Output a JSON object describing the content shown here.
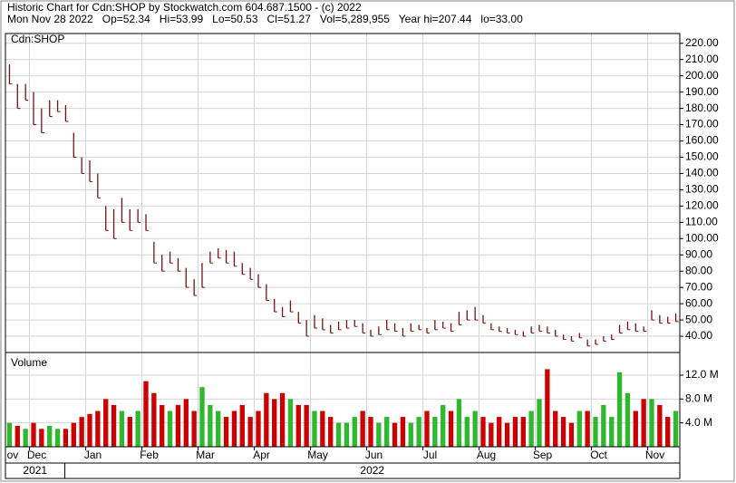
{
  "chart_data": [
    {
      "type": "range-bar",
      "title": "Historic Chart for Cdn:SHOP by Stockwatch.com 604.687.1500 - (c) 2022",
      "subtitle": "Mon Nov 28 2022   Op=52.34   Hi=53.99   Lo=50.53   Cl=51.27   Vol=5,289,955   Year hi=207.44   lo=33.00",
      "label": "Cdn:SHOP",
      "color": "#7a1010",
      "grid": true,
      "xlim": [
        0,
        84
      ],
      "xticks": [
        {
          "value": 0,
          "label": "ov"
        },
        {
          "value": 3,
          "label": "Dec"
        },
        {
          "value": 10,
          "label": "Jan"
        },
        {
          "value": 17,
          "label": "Feb"
        },
        {
          "value": 24,
          "label": "Mar"
        },
        {
          "value": 31,
          "label": "Apr"
        },
        {
          "value": 38,
          "label": "May"
        },
        {
          "value": 45,
          "label": "Jun"
        },
        {
          "value": 52,
          "label": "Jul"
        },
        {
          "value": 59,
          "label": "Aug"
        },
        {
          "value": 66,
          "label": "Sep"
        },
        {
          "value": 73,
          "label": "Oct"
        },
        {
          "value": 80,
          "label": "Nov"
        }
      ],
      "year_ticks": [
        {
          "value": 0,
          "label": "2021"
        },
        {
          "value": 7.4,
          "label": "2022"
        }
      ],
      "ylim": [
        30,
        226
      ],
      "yticks": [
        {
          "value": 40,
          "label": "40.00"
        },
        {
          "value": 50,
          "label": "50.00"
        },
        {
          "value": 60,
          "label": "60.00"
        },
        {
          "value": 70,
          "label": "70.00"
        },
        {
          "value": 80,
          "label": "80.00"
        },
        {
          "value": 90,
          "label": "90.00"
        },
        {
          "value": 100,
          "label": "100.00"
        },
        {
          "value": 110,
          "label": "110.00"
        },
        {
          "value": 120,
          "label": "120.00"
        },
        {
          "value": 130,
          "label": "130.00"
        },
        {
          "value": 140,
          "label": "140.00"
        },
        {
          "value": 150,
          "label": "150.00"
        },
        {
          "value": 160,
          "label": "160.00"
        },
        {
          "value": 170,
          "label": "170.00"
        },
        {
          "value": 180,
          "label": "180.00"
        },
        {
          "value": 190,
          "label": "190.00"
        },
        {
          "value": 200,
          "label": "200.00"
        },
        {
          "value": 210,
          "label": "210.00"
        },
        {
          "value": 220,
          "label": "220.00"
        }
      ],
      "high": [
        207,
        195,
        195,
        190,
        180,
        185,
        185,
        182,
        165,
        150,
        148,
        140,
        120,
        118,
        125,
        118,
        118,
        115,
        98,
        90,
        92,
        88,
        82,
        75,
        85,
        92,
        94,
        93,
        92,
        85,
        82,
        78,
        72,
        63,
        58,
        62,
        55,
        50,
        53,
        51,
        47,
        49,
        50,
        50,
        48,
        44,
        46,
        50,
        48,
        45,
        48,
        47,
        45,
        50,
        49,
        48,
        55,
        56,
        58,
        53,
        48,
        46,
        45,
        44,
        43,
        46,
        47,
        46,
        44,
        41,
        40,
        42,
        38,
        38,
        40,
        41,
        47,
        49,
        48,
        46,
        56,
        53,
        52,
        54
      ],
      "low": [
        195,
        180,
        185,
        170,
        165,
        175,
        178,
        172,
        150,
        140,
        135,
        125,
        105,
        100,
        110,
        105,
        110,
        105,
        85,
        80,
        85,
        80,
        70,
        65,
        70,
        85,
        88,
        85,
        83,
        78,
        75,
        70,
        62,
        55,
        52,
        55,
        48,
        40,
        45,
        44,
        42,
        44,
        45,
        46,
        42,
        40,
        41,
        44,
        43,
        40,
        43,
        44,
        42,
        44,
        45,
        43,
        47,
        50,
        50,
        48,
        44,
        43,
        42,
        41,
        40,
        42,
        43,
        42,
        40,
        38,
        37,
        39,
        34,
        35,
        37,
        38,
        42,
        44,
        43,
        43,
        50,
        48,
        48,
        49
      ]
    },
    {
      "type": "bar",
      "label": "Volume",
      "up_color": "#2eb82e",
      "down_color": "#cc0000",
      "ylim": [
        0,
        15.8
      ],
      "yticks": [
        {
          "value": 4,
          "label": "4.0 M"
        },
        {
          "value": 8,
          "label": "8.0 M"
        },
        {
          "value": 12,
          "label": "12.0 M"
        }
      ],
      "values": [
        4,
        3.5,
        3,
        4,
        3,
        3.5,
        3,
        3,
        4,
        5,
        5.5,
        6,
        8,
        7,
        6,
        5,
        6,
        11,
        9,
        7,
        6,
        7,
        8,
        6,
        10,
        7,
        6,
        5,
        6,
        7,
        5,
        6,
        9,
        8,
        9,
        8,
        7,
        7,
        6,
        6,
        5,
        4,
        4,
        5,
        6,
        5,
        4,
        5,
        4,
        5,
        4,
        5,
        6,
        5,
        7,
        6,
        8,
        5,
        6,
        5,
        4,
        5,
        4,
        5,
        5,
        6,
        8,
        13,
        6,
        5,
        4,
        6,
        6,
        5,
        7,
        5,
        12.5,
        9,
        6,
        8,
        8,
        7,
        5,
        6
      ]
    }
  ]
}
